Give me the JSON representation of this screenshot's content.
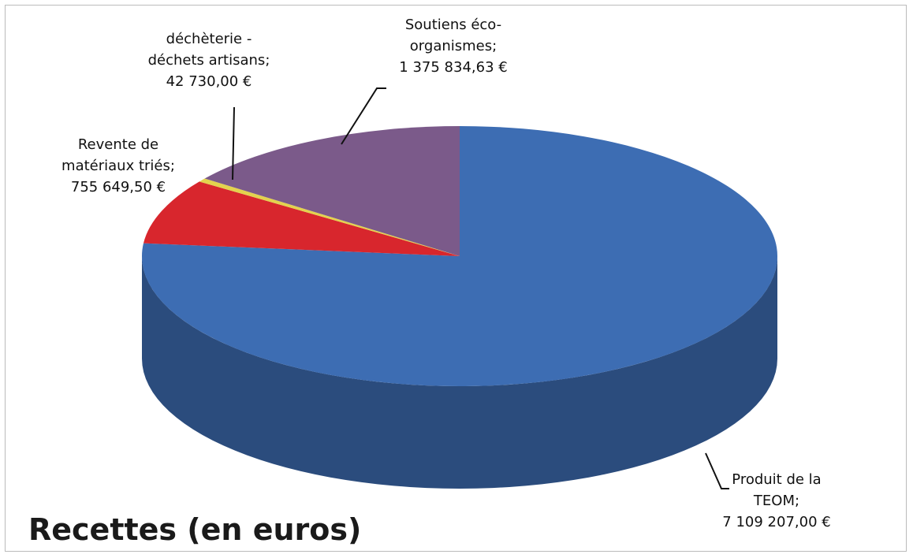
{
  "chart_data": {
    "type": "pie3d",
    "title": "Recettes (en euros)",
    "categories": [
      "Produit de la TEOM;",
      "Revente de matériaux triés;",
      "déchèterie - déchets artisans;",
      "Soutiens éco-organismes;"
    ],
    "values": [
      7109207.0,
      755649.5,
      42730.0,
      1375834.63
    ],
    "value_labels": [
      "7 109 207,00 €",
      "755 649,50 €",
      "42 730,00 €",
      "1 375 834,63 €"
    ],
    "colors": [
      "#3d6db3",
      "#d8262d",
      "#e3d24e",
      "#7b5a8a"
    ]
  }
}
